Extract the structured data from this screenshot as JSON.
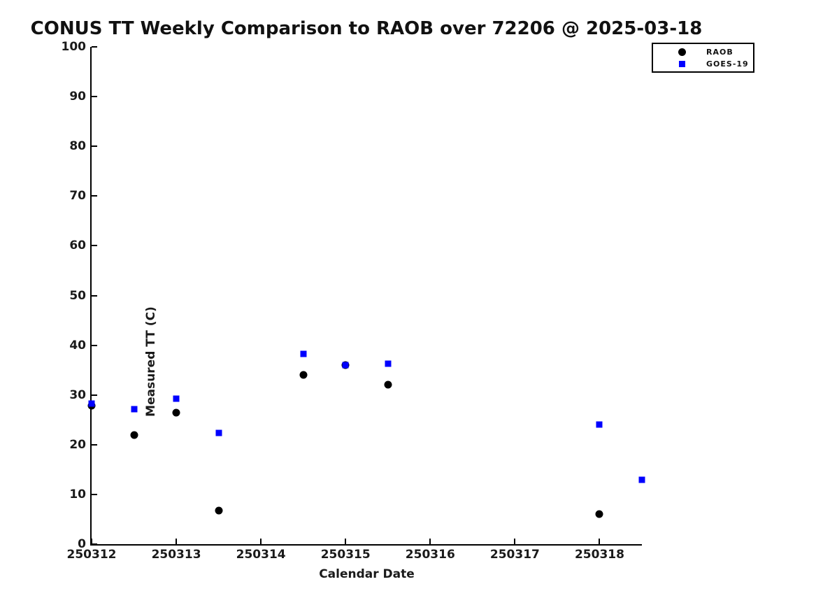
{
  "chart_data": {
    "type": "scatter",
    "title": "CONUS TT Weekly Comparison to RAOB over 72206 @ 2025-03-18",
    "xlabel": "Calendar Date",
    "ylabel": "Measured TT (C)",
    "xlim": [
      250312,
      250318.5
    ],
    "ylim": [
      0,
      100
    ],
    "grid": false,
    "legend_position": "top-right",
    "x_ticks": [
      250312,
      250313,
      250314,
      250315,
      250316,
      250317,
      250318
    ],
    "x_tick_labels": [
      "250312",
      "250313",
      "250314",
      "250315",
      "250316",
      "250317",
      "250318"
    ],
    "y_ticks": [
      0,
      10,
      20,
      30,
      40,
      50,
      60,
      70,
      80,
      90,
      100
    ],
    "y_tick_labels": [
      "0",
      "10",
      "20",
      "30",
      "40",
      "50",
      "60",
      "70",
      "80",
      "90",
      "100"
    ],
    "series": [
      {
        "name": "RAOB",
        "marker": "circle",
        "color": "#000000",
        "points": [
          [
            250312.0,
            27.8
          ],
          [
            250312.5,
            22.0
          ],
          [
            250313.0,
            26.4
          ],
          [
            250313.5,
            6.8
          ],
          [
            250314.5,
            34.0
          ],
          [
            250315.0,
            36.0
          ],
          [
            250315.5,
            32.0
          ],
          [
            250318.0,
            6.0
          ]
        ]
      },
      {
        "name": "GOES-19",
        "marker": "square",
        "color": "#0000ff",
        "points": [
          [
            250312.0,
            28.2
          ],
          [
            250312.5,
            27.1
          ],
          [
            250313.0,
            29.3
          ],
          [
            250313.5,
            22.3
          ],
          [
            250314.5,
            38.2
          ],
          [
            250315.0,
            36.0
          ],
          [
            250315.5,
            36.3
          ],
          [
            250318.0,
            24.0
          ],
          [
            250318.5,
            13.0
          ]
        ]
      }
    ]
  }
}
